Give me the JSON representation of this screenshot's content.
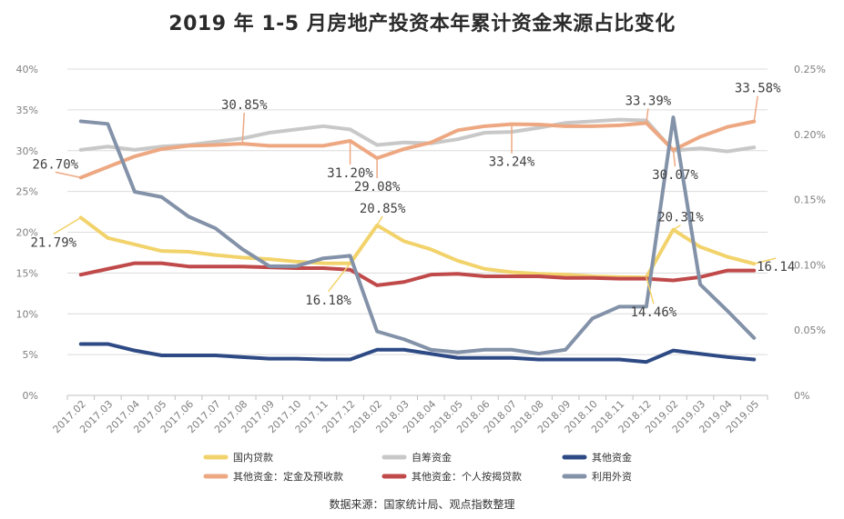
{
  "title": "2019 年 1-5 月房地产投资本年累计资金来源占比变化",
  "source": "数据来源：国家统计局、观点指数整理",
  "chart_data": {
    "type": "line",
    "categories": [
      "2017.02",
      "2017.03",
      "2017.04",
      "2017.05",
      "2017.06",
      "2017.07",
      "2017.08",
      "2017.09",
      "2017.10",
      "2017.11",
      "2017.12",
      "2018.02",
      "2018.03",
      "2018.04",
      "2018.05",
      "2018.06",
      "2018.07",
      "2018.08",
      "2018.09",
      "2018.10",
      "2018.11",
      "2018.12",
      "2019.02",
      "2019.03",
      "2019.04",
      "2019.05"
    ],
    "left_axis": {
      "ticks": [
        "0%",
        "5%",
        "10%",
        "15%",
        "20%",
        "25%",
        "30%",
        "35%",
        "40%"
      ],
      "ylim": [
        0,
        40
      ]
    },
    "right_axis": {
      "ticks": [
        "0%",
        "0.05%",
        "0.10%",
        "0.15%",
        "0.20%",
        "0.25%"
      ],
      "ylim": [
        0,
        0.25
      ]
    },
    "grid": true,
    "legend_position": "bottom",
    "series": [
      {
        "name": "国内贷款",
        "color": "#F2D36B",
        "axis": "left",
        "values": [
          21.79,
          19.3,
          18.5,
          17.7,
          17.6,
          17.2,
          16.9,
          16.7,
          16.4,
          16.2,
          16.18,
          20.85,
          18.9,
          17.9,
          16.5,
          15.5,
          15.1,
          14.9,
          14.8,
          14.6,
          14.5,
          14.46,
          20.31,
          18.2,
          17.0,
          16.14
        ]
      },
      {
        "name": "自筹资金",
        "color": "#C8C8C8",
        "axis": "left",
        "values": [
          30.1,
          30.5,
          30.1,
          30.5,
          30.7,
          31.1,
          31.5,
          32.2,
          32.6,
          33.0,
          32.6,
          30.7,
          31.0,
          30.9,
          31.4,
          32.2,
          32.3,
          32.8,
          33.4,
          33.6,
          33.8,
          33.7,
          30.0,
          30.3,
          29.9,
          30.4
        ]
      },
      {
        "name": "其他资金",
        "color": "#2E4A85",
        "axis": "left",
        "values": [
          6.3,
          6.3,
          5.5,
          4.9,
          4.9,
          4.9,
          4.7,
          4.5,
          4.5,
          4.4,
          4.4,
          5.6,
          5.6,
          5.1,
          4.6,
          4.6,
          4.6,
          4.4,
          4.4,
          4.4,
          4.4,
          4.1,
          5.5,
          5.1,
          4.7,
          4.4
        ]
      },
      {
        "name": "其他资金：定金及预收款",
        "color": "#EDA882",
        "axis": "left",
        "values": [
          26.7,
          28.0,
          29.3,
          30.2,
          30.6,
          30.7,
          30.85,
          30.6,
          30.6,
          30.6,
          31.2,
          29.08,
          30.2,
          31.0,
          32.5,
          33.0,
          33.24,
          33.2,
          33.0,
          33.0,
          33.1,
          33.39,
          30.07,
          31.7,
          32.9,
          33.58
        ]
      },
      {
        "name": "其他资金：个人按揭贷款",
        "color": "#C0494A",
        "axis": "left",
        "values": [
          14.8,
          15.5,
          16.2,
          16.2,
          15.8,
          15.8,
          15.8,
          15.7,
          15.6,
          15.6,
          15.4,
          13.5,
          13.9,
          14.8,
          14.9,
          14.6,
          14.6,
          14.6,
          14.4,
          14.4,
          14.3,
          14.3,
          14.1,
          14.5,
          15.3,
          15.3
        ]
      },
      {
        "name": "利用外资",
        "color": "#8392A8",
        "axis": "right",
        "values": [
          0.21,
          0.208,
          0.156,
          0.152,
          0.137,
          0.128,
          0.112,
          0.099,
          0.099,
          0.105,
          0.107,
          0.049,
          0.043,
          0.035,
          0.033,
          0.035,
          0.035,
          0.032,
          0.035,
          0.059,
          0.068,
          0.068,
          0.213,
          0.085,
          0.065,
          0.044
        ]
      }
    ],
    "annotations": [
      {
        "text": "26.70%",
        "series": 3,
        "point": 0
      },
      {
        "text": "30.85%",
        "series": 3,
        "point": 6
      },
      {
        "text": "31.20%",
        "series": 3,
        "point": 10
      },
      {
        "text": "29.08%",
        "series": 3,
        "point": 11
      },
      {
        "text": "33.24%",
        "series": 3,
        "point": 16
      },
      {
        "text": "33.39%",
        "series": 3,
        "point": 21
      },
      {
        "text": "30.07%",
        "series": 3,
        "point": 22
      },
      {
        "text": "33.58%",
        "series": 3,
        "point": 25
      },
      {
        "text": "21.79%",
        "series": 0,
        "point": 0
      },
      {
        "text": "20.85%",
        "series": 0,
        "point": 11
      },
      {
        "text": "16.18%",
        "series": 0,
        "point": 10
      },
      {
        "text": "14.46%",
        "series": 0,
        "point": 21
      },
      {
        "text": "20.31%",
        "series": 0,
        "point": 22
      },
      {
        "text": "16.14",
        "series": 0,
        "point": 25
      }
    ]
  }
}
